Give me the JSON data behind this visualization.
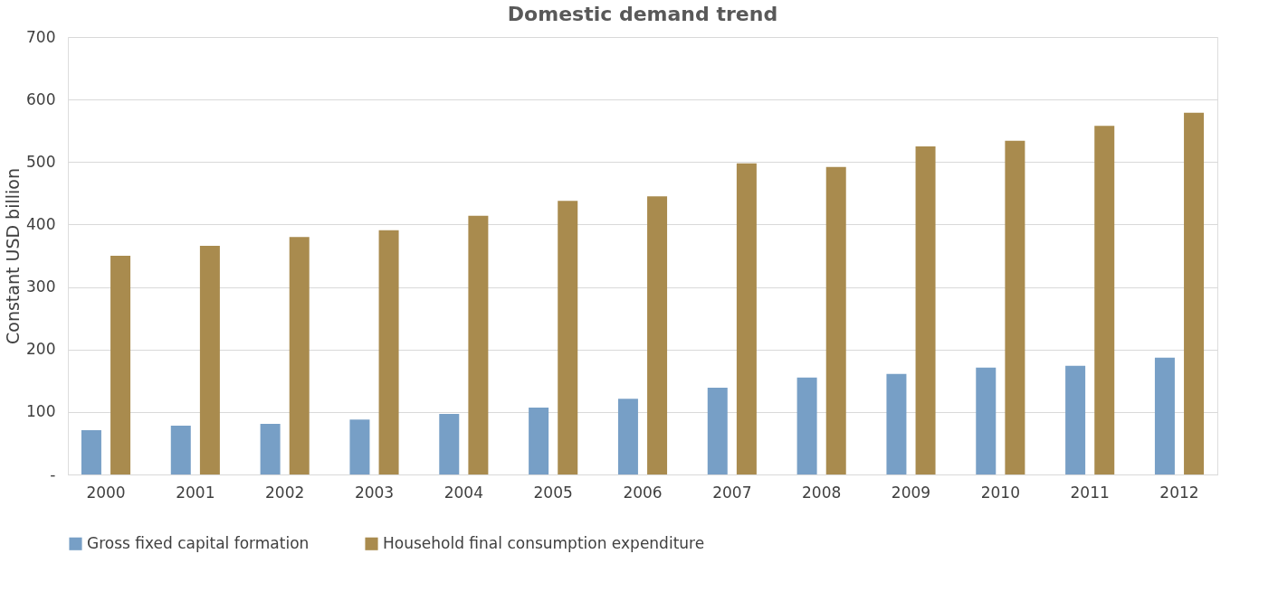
{
  "chart_data": {
    "type": "bar",
    "title": "Domestic demand trend",
    "ylabel": "Constant USD billion",
    "categories": [
      "2000",
      "2001",
      "2002",
      "2003",
      "2004",
      "2005",
      "2006",
      "2007",
      "2008",
      "2009",
      "2010",
      "2011",
      "2012"
    ],
    "series": [
      {
        "name": "Gross fixed capital formation",
        "color": "#779fc6",
        "values": [
          71,
          78,
          81,
          88,
          97,
          107,
          121,
          139,
          155,
          161,
          171,
          174,
          187
        ]
      },
      {
        "name": "Household final consumption expenditure",
        "color": "#a98b4e",
        "values": [
          350,
          366,
          380,
          391,
          414,
          438,
          445,
          498,
          492,
          525,
          534,
          558,
          579
        ]
      }
    ],
    "ylim": [
      0,
      700
    ],
    "yticks": [
      {
        "value": 0,
        "label": "-"
      },
      100,
      200,
      300,
      400,
      500,
      600,
      700
    ],
    "grid": "y",
    "legend": "bottom"
  }
}
